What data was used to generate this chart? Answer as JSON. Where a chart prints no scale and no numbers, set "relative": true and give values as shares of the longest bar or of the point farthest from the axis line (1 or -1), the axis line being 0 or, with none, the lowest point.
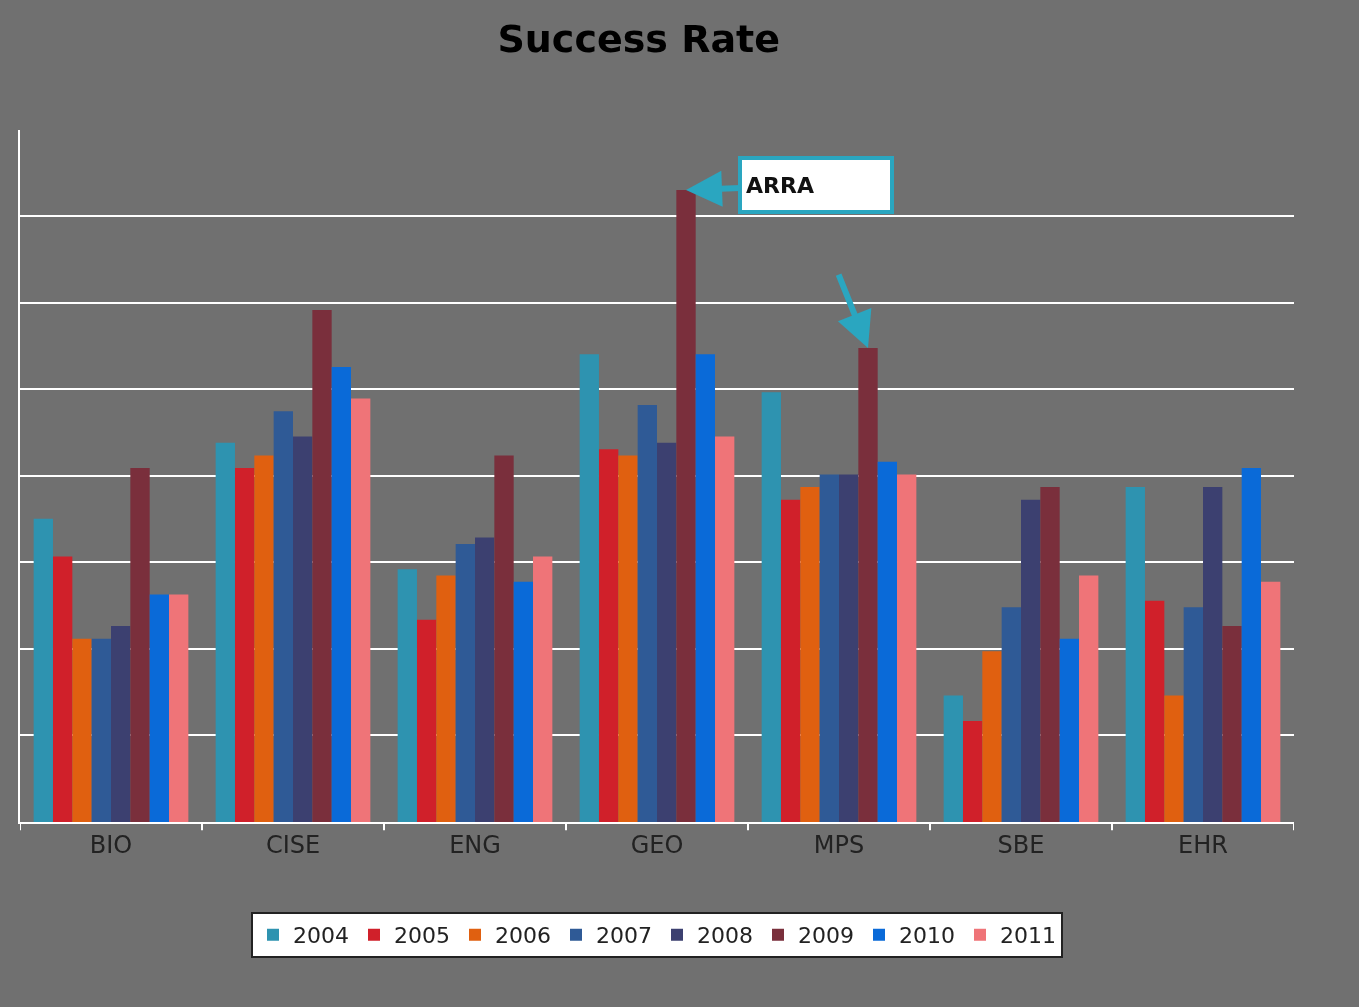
{
  "chart_data": {
    "type": "bar",
    "title": "Success Rate",
    "relative": true,
    "grid": "y",
    "legend": "bottom",
    "categories": [
      "BIO",
      "CISE",
      "ENG",
      "GEO",
      "MPS",
      "SBE",
      "EHR"
    ],
    "series": [
      {
        "name": "2004",
        "color": "#2e93b0",
        "values": [
          0.48,
          0.6,
          0.4,
          0.74,
          0.68,
          0.2,
          0.53
        ]
      },
      {
        "name": "2005",
        "color": "#d0202a",
        "values": [
          0.42,
          0.56,
          0.32,
          0.59,
          0.51,
          0.16,
          0.35
        ]
      },
      {
        "name": "2006",
        "color": "#e06010",
        "values": [
          0.29,
          0.58,
          0.39,
          0.58,
          0.53,
          0.27,
          0.2
        ]
      },
      {
        "name": "2007",
        "color": "#2f5a96",
        "values": [
          0.29,
          0.65,
          0.44,
          0.66,
          0.55,
          0.34,
          0.34
        ]
      },
      {
        "name": "2008",
        "color": "#3c4070",
        "values": [
          0.31,
          0.61,
          0.45,
          0.6,
          0.55,
          0.51,
          0.53
        ]
      },
      {
        "name": "2009",
        "color": "#7a2f3c",
        "values": [
          0.56,
          0.81,
          0.58,
          1.0,
          0.75,
          0.53,
          0.31
        ]
      },
      {
        "name": "2010",
        "color": "#0a6ad8",
        "values": [
          0.36,
          0.72,
          0.38,
          0.74,
          0.57,
          0.29,
          0.56
        ]
      },
      {
        "name": "2011",
        "color": "#ef7478",
        "values": [
          0.36,
          0.67,
          0.42,
          0.61,
          0.55,
          0.39,
          0.38
        ]
      }
    ],
    "annotations": [
      "ARRA"
    ]
  }
}
